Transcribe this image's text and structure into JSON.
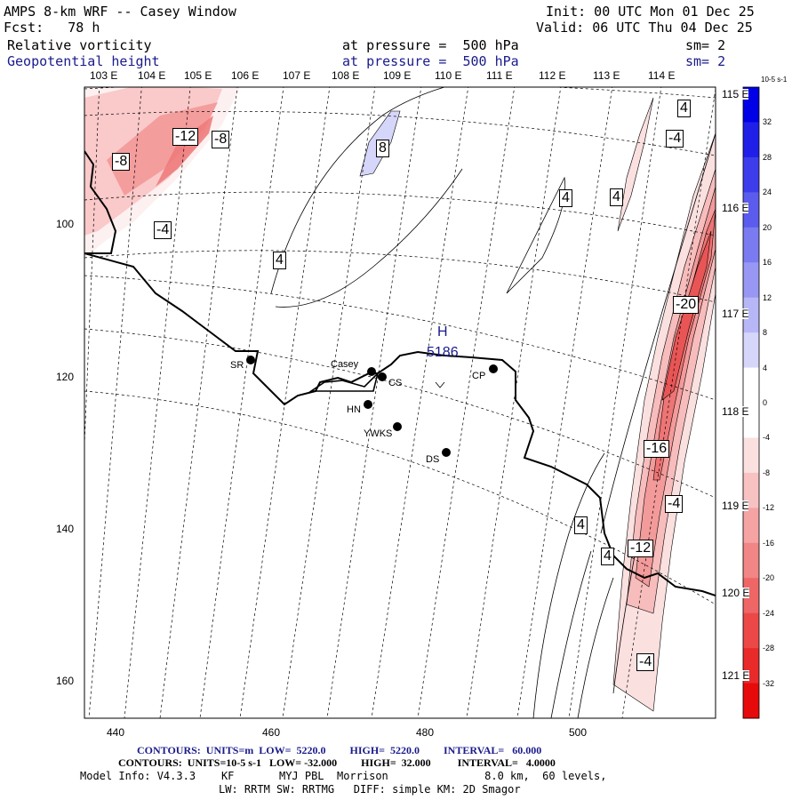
{
  "header": {
    "title": "AMPS 8-km WRF -- Casey Window",
    "init": "Init: 00 UTC Mon 01 Dec 25",
    "fcst": "Fcst:   78 h",
    "valid": "Valid: 06 UTC Thu 04 Dec 25",
    "field1": {
      "name": "Relative vorticity",
      "level": "at pressure =  500 hPa",
      "sm": "sm= 2"
    },
    "field2": {
      "name": "Geopotential height",
      "level": "at pressure =  500 hPa",
      "sm": "sm= 2"
    }
  },
  "axes": {
    "bottom_ticks": [
      "440",
      "460",
      "480",
      "500"
    ],
    "left_ticks": [
      "100",
      "120",
      "140",
      "160"
    ],
    "top_lon_labels": [
      "103 E",
      "104 E",
      "105 E",
      "106 E",
      "107 E",
      "108 E",
      "109 E",
      "110 E",
      "111 E",
      "112 E",
      "113 E",
      "114 E"
    ],
    "right_lon_labels": [
      "115 E",
      "116 E",
      "117 E",
      "118 E",
      "119 E",
      "120 E",
      "121 E"
    ]
  },
  "stations": [
    {
      "name": "SR"
    },
    {
      "name": "Casey"
    },
    {
      "name": "CS"
    },
    {
      "name": "HN"
    },
    {
      "name": "YWKS"
    },
    {
      "name": "DS"
    },
    {
      "name": "CP"
    }
  ],
  "high_marker": {
    "symbol": "H",
    "value": "5186"
  },
  "contour_labels": [
    "-12",
    "-8",
    "-8",
    "-4",
    "4",
    "8",
    "4",
    "-4",
    "4",
    "4",
    "-20",
    "-16",
    "-4",
    "4",
    "4",
    "-12",
    "-4"
  ],
  "colorbar": {
    "unit": "10-5 s-1",
    "values": [
      "32",
      "28",
      "24",
      "20",
      "16",
      "12",
      "8",
      "4",
      "0",
      "-4",
      "-8",
      "-12",
      "-16",
      "-20",
      "-24",
      "-28",
      "-32"
    ],
    "colors": [
      "#0000e6",
      "#1f1fe8",
      "#3d3deb",
      "#5b5bee",
      "#7a7af1",
      "#9898f4",
      "#b7b7f7",
      "#d6d6fa",
      "#ffffff",
      "#ffffff",
      "#fbe0e0",
      "#f8c2c2",
      "#f5a3a3",
      "#f28585",
      "#ef6666",
      "#ec4848",
      "#e92a2a",
      "#e60a0a"
    ]
  },
  "footer": {
    "line1": "CONTOURS:  UNITS=m  LOW=  5220.0         HIGH=  5220.0         INTERVAL=   60.000",
    "line2": "CONTOURS:  UNITS=10-5 s-1   LOW= -32.000         HIGH=  32.000          INTERVAL=   4.0000",
    "line3": "Model Info: V4.3.3    KF       MYJ PBL  Morrison               8.0 km,  60 levels,",
    "line4": "LW: RRTM SW: RRTMG   DIFF: simple KM: 2D Smagor"
  }
}
